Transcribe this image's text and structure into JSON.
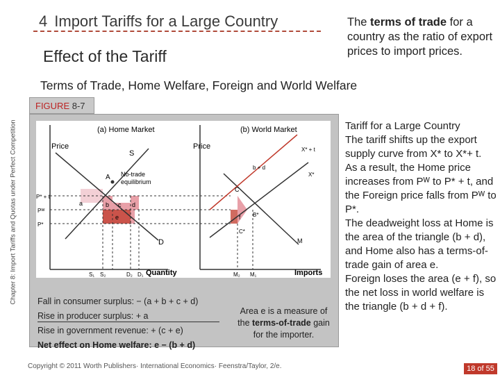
{
  "slide": {
    "number": "4",
    "title": "Import Tariffs for a Large Country",
    "subtitle": "Effect of the Tariff",
    "heading": "Terms of Trade, Home Welfare, Foreign and World Welfare",
    "side_label": "Chapter 8: Import Tariffs and Quotas under Perfect Competition",
    "terms_bold": "terms of trade",
    "terms_pre": "The ",
    "terms_post": " for a country as the ratio of export prices to import prices.",
    "copyright": "Copyright © 2011 Worth Publishers· International Economics· Feenstra/Taylor, 2/e.",
    "page": "18 of 55"
  },
  "figure": {
    "tab_prefix": "FIGURE",
    "tab_number": "8-7",
    "panel_a_title": "(a) Home Market",
    "panel_b_title": "(b) World Market",
    "price_a": "Price",
    "price_b": "Price",
    "quantity": "Quantity",
    "imports": "Imports",
    "no_trade": "No-trade",
    "equilibrium": "equilibrium",
    "label_S": "S",
    "label_D": "D",
    "label_A": "A",
    "label_M": "M",
    "label_C": "C",
    "label_Bstar": "B*",
    "label_Cstar": "C*",
    "label_Xstar": "X*",
    "label_Xstar_t": "X* + t",
    "label_bd": "b + d",
    "label_P1": "P* + t",
    "label_PW": "Pᵂ",
    "label_P2": "P*",
    "label_a": "a",
    "label_b": "b",
    "label_c": "c",
    "label_d": "d",
    "label_e": "e",
    "label_f": "f",
    "label_S1": "S₁",
    "label_S2": "S₂",
    "label_D2": "D₂",
    "label_D1": "D₁",
    "label_M2": "M₂",
    "label_M1": "M₁"
  },
  "summary": {
    "line1": "Fall in consumer surplus: − (a + b + c + d)",
    "line2": "Rise in producer surplus: + a",
    "line3": "Rise in government revenue: + (c + e)",
    "line4": "Net effect on Home welfare: e − (b + d)",
    "area_pre": "Area e is a measure of the ",
    "area_bold": "terms-of-trade",
    "area_post": " gain for the importer."
  },
  "right_text": {
    "heading": "Tariff for a Large Country",
    "p1": " The tariff shifts up the export supply curve from X* to X*+ t.",
    "p2": "As a result, the Home price increases from Pᵂ to P* + t, and the Foreign price falls from Pᵂ to P*.",
    "p3": "The deadweight loss at Home is the area of the triangle (b + d), and Home also has a terms-of-trade gain of area e.",
    "p4": "Foreign loses the area (e + f), so the net loss in world welfare is the triangle (b + d + f)."
  },
  "colors": {
    "accent_red": "#c0392b",
    "dash_line": "#b04a3a",
    "figure_gray": "#c3c3c3",
    "triangle_pink": "#e8a0a8",
    "rect_red": "#c0392b"
  }
}
